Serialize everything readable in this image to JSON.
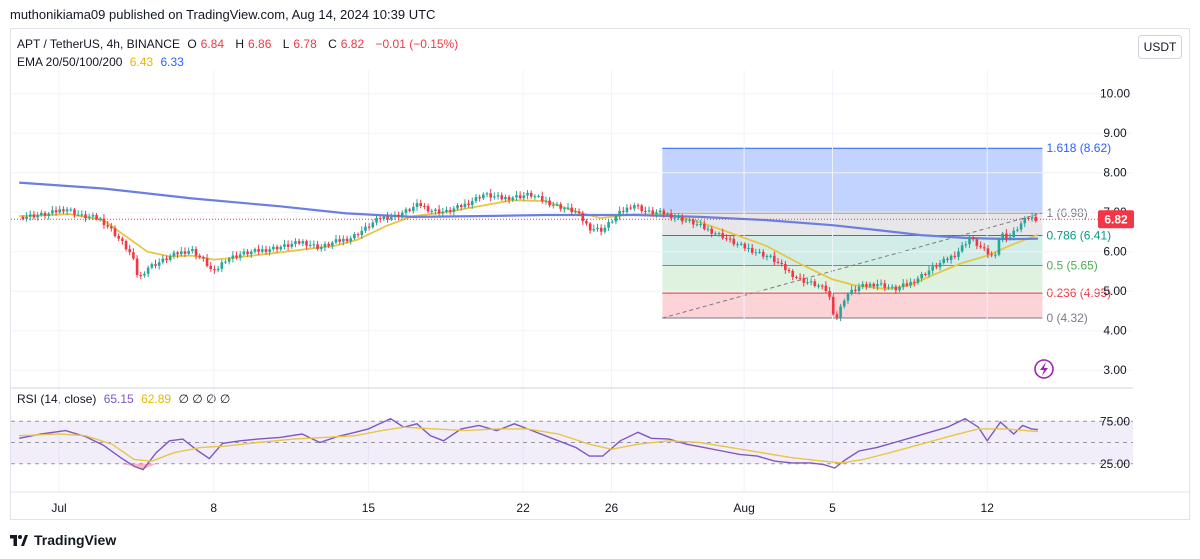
{
  "header": {
    "published": "muthonikiama09 published on TradingView.com, Aug 14, 2024 10:39 UTC"
  },
  "legend": {
    "symbol": "APT / TetherUS, 4h, BINANCE",
    "open_label": "O",
    "open": "6.84",
    "high_label": "H",
    "high": "6.86",
    "low_label": "L",
    "low": "6.78",
    "close_label": "C",
    "close": "6.82",
    "change": "−0.01 (−0.15%)",
    "ema_label": "EMA 20/50/100/200",
    "ema_a": "6.43",
    "ema_b": "6.33",
    "rsi_label": "RSI (14, close)",
    "rsi_a": "65.15",
    "rsi_b": "62.89",
    "rsi_extra": "∅ ∅ ∅ ∅"
  },
  "toolbar": {
    "currency": "USDT"
  },
  "footer": {
    "brand": "TradingView"
  },
  "colors": {
    "up": "#26a69a",
    "down": "#f23645",
    "ema_fast": "#e8c547",
    "ema_slow": "#6a7fe0",
    "rsi": "#7e57c2"
  },
  "chart_data": [
    {
      "type": "candlestick",
      "title": "APT / TetherUS, 4h, BINANCE",
      "ylim": [
        2.6,
        10.6
      ],
      "yticks": [
        3.0,
        4.0,
        5.0,
        6.0,
        7.0,
        8.0,
        9.0,
        10.0
      ],
      "ytick_labels": [
        "3.00",
        "4.00",
        "5.00",
        "6.00",
        "7.00",
        "8.00",
        "9.00",
        "10.00"
      ],
      "xticks": [
        "Jul",
        "8",
        "15",
        "22",
        "26",
        "Aug",
        "5",
        "12"
      ],
      "x_days": [
        0,
        7,
        14,
        21,
        25,
        31,
        35,
        42
      ],
      "last_price": 6.82,
      "last_price_label": "6.82",
      "price_path": [
        [
          -1.8,
          6.88
        ],
        [
          -0.5,
          6.95
        ],
        [
          0.3,
          7.1
        ],
        [
          1.0,
          6.9
        ],
        [
          1.8,
          6.85
        ],
        [
          2.3,
          6.6
        ],
        [
          2.9,
          6.2
        ],
        [
          3.3,
          5.9
        ],
        [
          3.6,
          5.3
        ],
        [
          4.0,
          5.6
        ],
        [
          4.6,
          5.75
        ],
        [
          5.3,
          5.95
        ],
        [
          6.0,
          6.05
        ],
        [
          6.6,
          5.75
        ],
        [
          7.0,
          5.45
        ],
        [
          7.5,
          5.8
        ],
        [
          8.3,
          5.95
        ],
        [
          9.3,
          6.05
        ],
        [
          10.3,
          6.15
        ],
        [
          11.0,
          6.25
        ],
        [
          11.8,
          6.1
        ],
        [
          12.5,
          6.25
        ],
        [
          13.2,
          6.35
        ],
        [
          13.9,
          6.6
        ],
        [
          14.5,
          6.85
        ],
        [
          15.2,
          6.9
        ],
        [
          15.8,
          7.05
        ],
        [
          16.3,
          7.2
        ],
        [
          16.8,
          7.05
        ],
        [
          17.5,
          7.0
        ],
        [
          18.4,
          7.2
        ],
        [
          19.2,
          7.45
        ],
        [
          20.0,
          7.35
        ],
        [
          20.8,
          7.4
        ],
        [
          21.3,
          7.45
        ],
        [
          21.9,
          7.3
        ],
        [
          22.6,
          7.15
        ],
        [
          23.4,
          7.0
        ],
        [
          24.0,
          6.6
        ],
        [
          24.6,
          6.55
        ],
        [
          25.3,
          6.95
        ],
        [
          26.0,
          7.2
        ],
        [
          26.6,
          7.0
        ],
        [
          27.3,
          6.98
        ],
        [
          28.0,
          6.85
        ],
        [
          28.6,
          6.75
        ],
        [
          29.4,
          6.55
        ],
        [
          30.0,
          6.4
        ],
        [
          30.6,
          6.2
        ],
        [
          31.3,
          6.05
        ],
        [
          32.2,
          5.85
        ],
        [
          33.0,
          5.5
        ],
        [
          33.5,
          5.3
        ],
        [
          34.3,
          5.15
        ],
        [
          34.8,
          5.0
        ],
        [
          35.0,
          4.5
        ],
        [
          35.2,
          4.35
        ],
        [
          35.6,
          4.9
        ],
        [
          36.2,
          5.1
        ],
        [
          37.0,
          5.2
        ],
        [
          37.8,
          5.05
        ],
        [
          38.5,
          5.2
        ],
        [
          39.3,
          5.5
        ],
        [
          40.0,
          5.75
        ],
        [
          40.6,
          5.95
        ],
        [
          41.2,
          6.35
        ],
        [
          41.8,
          6.05
        ],
        [
          42.3,
          5.85
        ],
        [
          42.6,
          6.45
        ],
        [
          43.0,
          6.35
        ],
        [
          43.3,
          6.55
        ],
        [
          43.6,
          6.75
        ],
        [
          43.9,
          6.88
        ],
        [
          44.3,
          6.82
        ]
      ],
      "series": [
        {
          "name": "EMA 20",
          "color": "#e8c547",
          "points": [
            [
              -1.8,
              6.9
            ],
            [
              0.5,
              6.95
            ],
            [
              2.0,
              6.8
            ],
            [
              3.0,
              6.4
            ],
            [
              4.0,
              6.0
            ],
            [
              5.0,
              5.88
            ],
            [
              6.0,
              5.9
            ],
            [
              7.0,
              5.8
            ],
            [
              8.0,
              5.85
            ],
            [
              9.5,
              5.95
            ],
            [
              11.0,
              6.05
            ],
            [
              12.5,
              6.15
            ],
            [
              13.5,
              6.3
            ],
            [
              14.8,
              6.65
            ],
            [
              16.0,
              6.9
            ],
            [
              17.5,
              7.0
            ],
            [
              19.0,
              7.15
            ],
            [
              20.5,
              7.3
            ],
            [
              22.0,
              7.28
            ],
            [
              23.5,
              7.0
            ],
            [
              24.5,
              6.85
            ],
            [
              26.0,
              6.95
            ],
            [
              27.5,
              6.95
            ],
            [
              29.0,
              6.75
            ],
            [
              30.5,
              6.45
            ],
            [
              32.0,
              6.15
            ],
            [
              33.5,
              5.7
            ],
            [
              35.0,
              5.3
            ],
            [
              36.0,
              5.15
            ],
            [
              37.5,
              5.05
            ],
            [
              38.5,
              5.15
            ],
            [
              39.5,
              5.4
            ],
            [
              40.8,
              5.7
            ],
            [
              42.0,
              5.9
            ],
            [
              43.0,
              6.15
            ],
            [
              44.3,
              6.43
            ]
          ]
        },
        {
          "name": "EMA 200",
          "color": "#6a7fe0",
          "points": [
            [
              -1.8,
              7.75
            ],
            [
              2.0,
              7.6
            ],
            [
              6.0,
              7.35
            ],
            [
              10.0,
              7.15
            ],
            [
              13.0,
              6.97
            ],
            [
              16.0,
              6.88
            ],
            [
              19.0,
              6.9
            ],
            [
              22.0,
              6.93
            ],
            [
              26.0,
              6.93
            ],
            [
              29.0,
              6.88
            ],
            [
              32.0,
              6.8
            ],
            [
              35.0,
              6.67
            ],
            [
              37.0,
              6.55
            ],
            [
              39.0,
              6.42
            ],
            [
              41.0,
              6.35
            ],
            [
              43.0,
              6.32
            ],
            [
              44.3,
              6.33
            ]
          ]
        }
      ],
      "fibonacci": {
        "start_day": 27.3,
        "end_day": 44.5,
        "levels": [
          {
            "ratio": "1.618",
            "value": 8.62,
            "label": "1.618 (8.62)",
            "color": "#2962ff"
          },
          {
            "ratio": "1",
            "value": 6.98,
            "label": "1 (6.98)",
            "color": "#787b86"
          },
          {
            "ratio": "0.786",
            "value": 6.41,
            "label": "0.786 (6.41)",
            "color": "#089981"
          },
          {
            "ratio": "0.5",
            "value": 5.65,
            "label": "0.5 (5.65)",
            "color": "#4caf50"
          },
          {
            "ratio": "0.236",
            "value": 4.95,
            "label": "0.236 (4.95)",
            "color": "#f23645"
          },
          {
            "ratio": "0",
            "value": 4.32,
            "label": "0 (4.32)",
            "color": "#787b86"
          }
        ]
      }
    },
    {
      "type": "line",
      "title": "RSI (14, close)",
      "ylim": [
        0,
        100
      ],
      "yticks": [
        25,
        75
      ],
      "ytick_labels": [
        "25.00",
        "75.00"
      ],
      "bands": [
        30,
        50,
        70
      ],
      "series": [
        {
          "name": "RSI",
          "color": "#7e57c2",
          "points": [
            [
              -1.8,
              55
            ],
            [
              -0.8,
              60
            ],
            [
              0.3,
              64
            ],
            [
              1.2,
              57
            ],
            [
              2.0,
              47
            ],
            [
              2.8,
              32
            ],
            [
              3.4,
              22
            ],
            [
              3.8,
              18
            ],
            [
              4.4,
              38
            ],
            [
              5.0,
              52
            ],
            [
              5.6,
              54
            ],
            [
              6.3,
              40
            ],
            [
              6.8,
              31
            ],
            [
              7.4,
              49
            ],
            [
              8.2,
              52
            ],
            [
              9.0,
              54
            ],
            [
              10.0,
              56
            ],
            [
              11.0,
              60
            ],
            [
              11.8,
              50
            ],
            [
              12.6,
              57
            ],
            [
              13.4,
              62
            ],
            [
              14.0,
              66
            ],
            [
              14.5,
              72
            ],
            [
              15.0,
              78
            ],
            [
              15.6,
              68
            ],
            [
              16.2,
              72
            ],
            [
              16.8,
              58
            ],
            [
              17.4,
              52
            ],
            [
              18.2,
              66
            ],
            [
              19.0,
              70
            ],
            [
              19.8,
              64
            ],
            [
              20.6,
              72
            ],
            [
              21.2,
              66
            ],
            [
              21.8,
              60
            ],
            [
              22.6,
              52
            ],
            [
              23.4,
              44
            ],
            [
              24.0,
              34
            ],
            [
              24.6,
              34
            ],
            [
              25.4,
              52
            ],
            [
              26.2,
              62
            ],
            [
              26.8,
              55
            ],
            [
              27.6,
              54
            ],
            [
              28.4,
              48
            ],
            [
              29.2,
              44
            ],
            [
              30.0,
              40
            ],
            [
              30.8,
              36
            ],
            [
              31.6,
              34
            ],
            [
              32.4,
              28
            ],
            [
              33.2,
              26
            ],
            [
              34.0,
              26
            ],
            [
              34.6,
              24
            ],
            [
              35.1,
              20
            ],
            [
              35.6,
              30
            ],
            [
              36.2,
              40
            ],
            [
              37.0,
              44
            ],
            [
              37.8,
              50
            ],
            [
              38.6,
              56
            ],
            [
              39.4,
              62
            ],
            [
              40.2,
              68
            ],
            [
              41.0,
              78
            ],
            [
              41.6,
              68
            ],
            [
              42.0,
              52
            ],
            [
              42.6,
              74
            ],
            [
              43.2,
              60
            ],
            [
              43.6,
              70
            ],
            [
              44.0,
              66
            ],
            [
              44.3,
              65.15
            ]
          ]
        },
        {
          "name": "RSI MA",
          "color": "#e8c547",
          "points": [
            [
              -1.8,
              58
            ],
            [
              0.0,
              60
            ],
            [
              1.2,
              58
            ],
            [
              2.4,
              48
            ],
            [
              3.4,
              30
            ],
            [
              4.2,
              28
            ],
            [
              5.2,
              38
            ],
            [
              6.4,
              44
            ],
            [
              7.6,
              46
            ],
            [
              9.0,
              50
            ],
            [
              10.6,
              54
            ],
            [
              12.0,
              56
            ],
            [
              13.4,
              58
            ],
            [
              14.6,
              64
            ],
            [
              15.6,
              68
            ],
            [
              17.0,
              66
            ],
            [
              18.4,
              64
            ],
            [
              19.8,
              66
            ],
            [
              21.2,
              66
            ],
            [
              22.6,
              60
            ],
            [
              24.0,
              48
            ],
            [
              25.0,
              42
            ],
            [
              26.2,
              48
            ],
            [
              27.6,
              52
            ],
            [
              29.0,
              50
            ],
            [
              30.4,
              44
            ],
            [
              31.8,
              38
            ],
            [
              33.2,
              32
            ],
            [
              34.6,
              28
            ],
            [
              35.4,
              26
            ],
            [
              36.4,
              30
            ],
            [
              37.6,
              38
            ],
            [
              39.0,
              48
            ],
            [
              40.4,
              58
            ],
            [
              41.6,
              66
            ],
            [
              42.8,
              66
            ],
            [
              44.3,
              62.89
            ]
          ]
        }
      ]
    }
  ]
}
